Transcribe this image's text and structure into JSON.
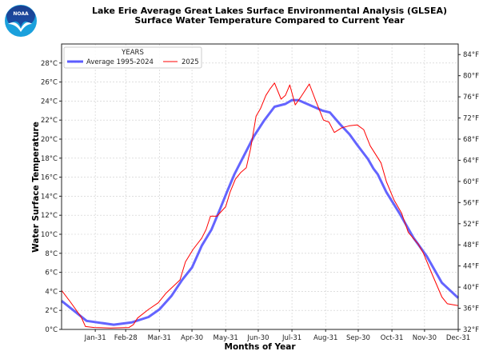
{
  "chart_data": {
    "type": "line",
    "title": "Lake Erie Average Great Lakes Surface Environmental Analysis (GLSEA)",
    "subtitle": "Surface Water Temperature Compared to Current Year",
    "xlabel": "Months of Year",
    "ylabel": "Water Surface Temperature",
    "xlim": [
      0,
      365
    ],
    "ylim": [
      0,
      30
    ],
    "grid": true,
    "legend": {
      "title": "YEARS",
      "placement": "top-left"
    },
    "x_ticks": [
      {
        "day": 31,
        "label": "Jan-31"
      },
      {
        "day": 59,
        "label": "Feb-28"
      },
      {
        "day": 90,
        "label": "Mar-31"
      },
      {
        "day": 120,
        "label": "Apr-30"
      },
      {
        "day": 151,
        "label": "May-31"
      },
      {
        "day": 181,
        "label": "Jun-30"
      },
      {
        "day": 212,
        "label": "Jul-31"
      },
      {
        "day": 243,
        "label": "Aug-31"
      },
      {
        "day": 273,
        "label": "Sep-30"
      },
      {
        "day": 304,
        "label": "Oct-31"
      },
      {
        "day": 334,
        "label": "Nov-30"
      },
      {
        "day": 365,
        "label": "Dec-31"
      }
    ],
    "y_ticks_c": [
      0,
      2,
      4,
      6,
      8,
      10,
      12,
      14,
      16,
      18,
      20,
      22,
      24,
      26,
      28
    ],
    "y_tick_suffix_c": "°C",
    "y_ticks_f": [
      32,
      36,
      40,
      44,
      48,
      52,
      56,
      60,
      64,
      68,
      72,
      76,
      80,
      84
    ],
    "y_tick_suffix_f": "°F",
    "series": [
      {
        "name": "Average 1995-2024",
        "color": "#5c5cff",
        "x": [
          0,
          23,
          48,
          65,
          80,
          90,
          101,
          111,
          120,
          129,
          138,
          146,
          152,
          159,
          168,
          177,
          186,
          196,
          206,
          212,
          218,
          230,
          240,
          247,
          256,
          265,
          272,
          282,
          287,
          291,
          299,
          311,
          324,
          336,
          350,
          365
        ],
        "y": [
          3.0,
          0.9,
          0.5,
          0.75,
          1.3,
          2.1,
          3.5,
          5.2,
          6.5,
          8.8,
          10.5,
          12.7,
          14.4,
          16.3,
          18.3,
          20.3,
          21.9,
          23.4,
          23.7,
          24.1,
          24.1,
          23.5,
          23.0,
          22.8,
          21.6,
          20.5,
          19.4,
          17.9,
          16.9,
          16.3,
          14.4,
          12.2,
          9.6,
          7.7,
          4.9,
          3.3
        ]
      },
      {
        "name": "2025",
        "color": "#ff0000",
        "x": [
          0,
          8,
          18,
          22,
          30,
          45,
          62,
          66,
          70,
          80,
          89,
          96,
          109,
          114,
          121,
          129,
          133,
          137,
          143,
          151,
          155,
          160,
          165,
          170,
          174,
          179,
          183,
          188,
          192,
          196,
          202,
          206,
          210,
          215,
          220,
          228,
          234,
          241,
          246,
          251,
          258,
          265,
          272,
          278,
          284,
          294,
          299,
          306,
          313,
          319,
          328,
          333,
          341,
          350,
          355,
          365
        ],
        "y": [
          4.1,
          2.9,
          1.3,
          0.3,
          0.2,
          0.15,
          0.2,
          0.5,
          1.2,
          2.1,
          2.8,
          3.8,
          5.2,
          7.1,
          8.4,
          9.6,
          10.5,
          11.9,
          11.9,
          12.9,
          14.4,
          15.8,
          16.5,
          17.0,
          19.0,
          22.4,
          23.2,
          24.6,
          25.3,
          25.9,
          24.2,
          24.6,
          25.7,
          23.6,
          24.4,
          25.8,
          24.0,
          22.0,
          21.8,
          20.7,
          21.2,
          21.4,
          21.5,
          21.0,
          19.3,
          17.5,
          15.5,
          13.6,
          12.2,
          10.2,
          9.0,
          8.0,
          5.8,
          3.4,
          2.7,
          2.5
        ]
      }
    ]
  },
  "logo": {
    "text": "NOAA"
  }
}
